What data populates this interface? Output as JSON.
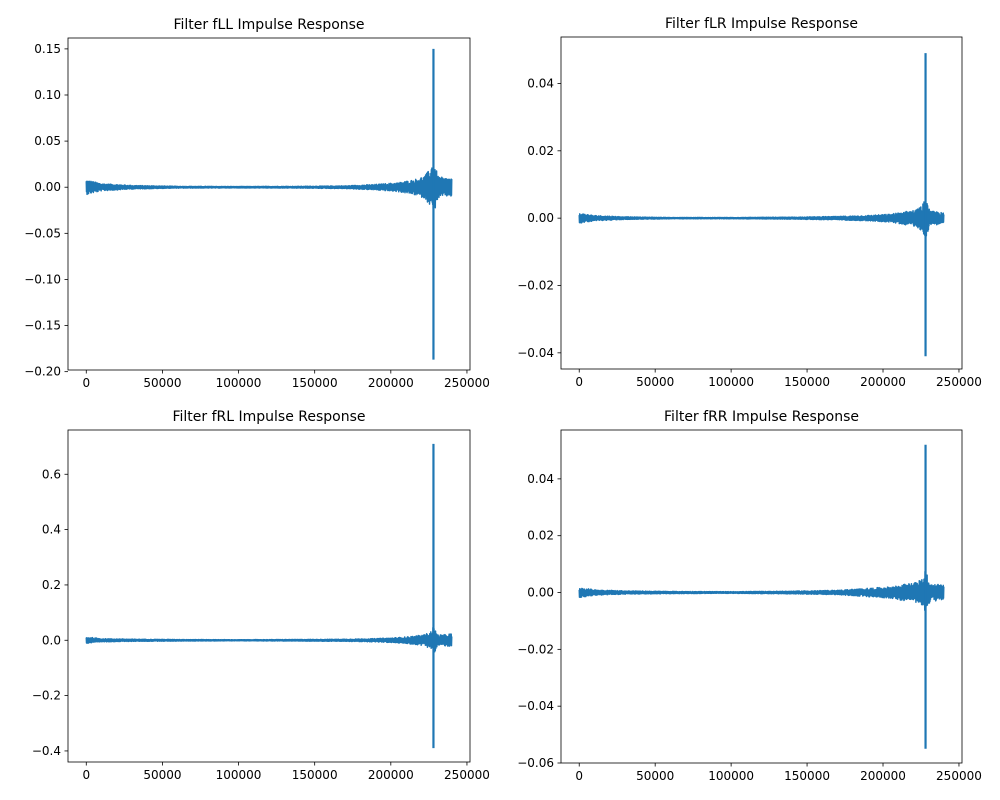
{
  "chart_data": [
    {
      "type": "line",
      "title": "Filter fLL Impulse Response",
      "xlim": [
        -12000,
        252000
      ],
      "ylim": [
        -0.1982,
        0.1618
      ],
      "xticks": [
        0,
        50000,
        100000,
        150000,
        200000,
        250000
      ],
      "xtick_labels": [
        "0",
        "50000",
        "100000",
        "150000",
        "200000",
        "250000"
      ],
      "yticks": [
        -0.2,
        -0.15,
        -0.1,
        -0.05,
        0.0,
        0.05,
        0.1,
        0.15
      ],
      "ytick_labels": [
        "−0.20",
        "−0.15",
        "−0.10",
        "−0.05",
        "0.00",
        "0.05",
        "0.10",
        "0.15"
      ],
      "series": [
        {
          "x_range": [
            0,
            240000
          ],
          "peak_x": 228000,
          "peak_max": 0.15,
          "peak_min": -0.187,
          "envelope": [
            [
              0,
              0.008
            ],
            [
              10000,
              0.004
            ],
            [
              30000,
              0.002
            ],
            [
              60000,
              0.001
            ],
            [
              100000,
              0.0008
            ],
            [
              140000,
              0.001
            ],
            [
              170000,
              0.0015
            ],
            [
              190000,
              0.003
            ],
            [
              205000,
              0.005
            ],
            [
              215000,
              0.008
            ],
            [
              222000,
              0.012
            ],
            [
              226000,
              0.02
            ],
            [
              228000,
              0.03
            ],
            [
              231000,
              0.012
            ],
            [
              235000,
              0.01
            ],
            [
              240000,
              0.01
            ]
          ]
        }
      ]
    },
    {
      "type": "line",
      "title": "Filter fLR Impulse Response",
      "xlim": [
        -12000,
        252000
      ],
      "ylim": [
        -0.0448,
        0.0538
      ],
      "xticks": [
        0,
        50000,
        100000,
        150000,
        200000,
        250000
      ],
      "xtick_labels": [
        "0",
        "50000",
        "100000",
        "150000",
        "200000",
        "250000"
      ],
      "yticks": [
        -0.04,
        -0.02,
        0.0,
        0.02,
        0.04
      ],
      "ytick_labels": [
        "−0.04",
        "−0.02",
        "0.00",
        "0.02",
        "0.04"
      ],
      "series": [
        {
          "x_range": [
            0,
            240000
          ],
          "peak_x": 228000,
          "peak_max": 0.049,
          "peak_min": -0.041,
          "envelope": [
            [
              0,
              0.0015
            ],
            [
              10000,
              0.0008
            ],
            [
              30000,
              0.0004
            ],
            [
              60000,
              0.0002
            ],
            [
              100000,
              0.0002
            ],
            [
              140000,
              0.0003
            ],
            [
              170000,
              0.0005
            ],
            [
              190000,
              0.0008
            ],
            [
              205000,
              0.0012
            ],
            [
              215000,
              0.002
            ],
            [
              222000,
              0.0025
            ],
            [
              226000,
              0.004
            ],
            [
              228000,
              0.006
            ],
            [
              231000,
              0.002
            ],
            [
              235000,
              0.002
            ],
            [
              240000,
              0.0015
            ]
          ]
        }
      ]
    },
    {
      "type": "line",
      "title": "Filter fRL Impulse Response",
      "xlim": [
        -12000,
        252000
      ],
      "ylim": [
        -0.44,
        0.76
      ],
      "xticks": [
        0,
        50000,
        100000,
        150000,
        200000,
        250000
      ],
      "xtick_labels": [
        "0",
        "50000",
        "100000",
        "150000",
        "200000",
        "250000"
      ],
      "yticks": [
        -0.4,
        -0.2,
        0.0,
        0.2,
        0.4,
        0.6
      ],
      "ytick_labels": [
        "−0.4",
        "−0.2",
        "0.0",
        "0.2",
        "0.4",
        "0.6"
      ],
      "series": [
        {
          "x_range": [
            0,
            240000
          ],
          "peak_x": 228000,
          "peak_max": 0.71,
          "peak_min": -0.39,
          "envelope": [
            [
              0,
              0.012
            ],
            [
              10000,
              0.006
            ],
            [
              30000,
              0.004
            ],
            [
              60000,
              0.003
            ],
            [
              100000,
              0.002
            ],
            [
              140000,
              0.003
            ],
            [
              170000,
              0.004
            ],
            [
              190000,
              0.006
            ],
            [
              205000,
              0.01
            ],
            [
              215000,
              0.015
            ],
            [
              222000,
              0.02
            ],
            [
              226000,
              0.03
            ],
            [
              228000,
              0.05
            ],
            [
              231000,
              0.02
            ],
            [
              235000,
              0.02
            ],
            [
              240000,
              0.025
            ]
          ]
        }
      ]
    },
    {
      "type": "line",
      "title": "Filter fRR Impulse Response",
      "xlim": [
        -12000,
        252000
      ],
      "ylim": [
        -0.06,
        0.0572
      ],
      "xticks": [
        0,
        50000,
        100000,
        150000,
        200000,
        250000
      ],
      "xtick_labels": [
        "0",
        "50000",
        "100000",
        "150000",
        "200000",
        "250000"
      ],
      "yticks": [
        -0.06,
        -0.04,
        -0.02,
        0.0,
        0.02,
        0.04
      ],
      "ytick_labels": [
        "−0.06",
        "−0.04",
        "−0.02",
        "0.00",
        "0.02",
        "0.04"
      ],
      "series": [
        {
          "x_range": [
            0,
            240000
          ],
          "peak_x": 228000,
          "peak_max": 0.052,
          "peak_min": -0.055,
          "envelope": [
            [
              0,
              0.0018
            ],
            [
              10000,
              0.001
            ],
            [
              30000,
              0.0006
            ],
            [
              60000,
              0.0004
            ],
            [
              100000,
              0.0003
            ],
            [
              140000,
              0.0005
            ],
            [
              170000,
              0.0008
            ],
            [
              190000,
              0.0015
            ],
            [
              205000,
              0.002
            ],
            [
              215000,
              0.003
            ],
            [
              222000,
              0.0035
            ],
            [
              226000,
              0.005
            ],
            [
              228000,
              0.008
            ],
            [
              231000,
              0.003
            ],
            [
              235000,
              0.003
            ],
            [
              240000,
              0.0025
            ]
          ]
        }
      ]
    }
  ],
  "style": {
    "line_color": "#1f77b4",
    "axis_color": "#000000",
    "background": "#ffffff"
  }
}
